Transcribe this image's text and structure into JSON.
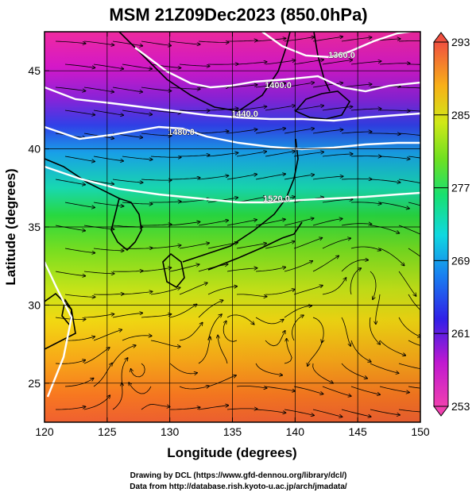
{
  "title": "MSM 21Z09Dec2023 (850.0hPa)",
  "x_axis": {
    "label": "Longitude (degrees)",
    "range": [
      120,
      150
    ],
    "ticks": [
      "120",
      "125",
      "130",
      "135",
      "140",
      "145",
      "150"
    ]
  },
  "y_axis": {
    "label": "Latitude  (degrees)",
    "range": [
      22.5,
      47.5
    ],
    "ticks": [
      "25",
      "30",
      "35",
      "40",
      "45"
    ]
  },
  "colorbar": {
    "min": 253,
    "max": 293,
    "labels": [
      "293",
      "285",
      "277",
      "269",
      "261",
      "253"
    ],
    "colors": [
      "#f0409a",
      "#c818d8",
      "#6a20e0",
      "#1a30f0",
      "#1888f0",
      "#10d8e0",
      "#18e8a0",
      "#20d838",
      "#7ae020",
      "#c8e818",
      "#f0d010",
      "#f8a010",
      "#f87028",
      "#f05040"
    ]
  },
  "contour_labels": [
    "1360.0",
    "1400.0",
    "1440.0",
    "1480.0",
    "1520.0"
  ],
  "credits": {
    "line1": "Drawing by DCL (https://www.gfd-dennou.org/library/dcl/)",
    "line2": "Data from http://database.rish.kyoto-u.ac.jp/arch/jmadata/"
  }
}
